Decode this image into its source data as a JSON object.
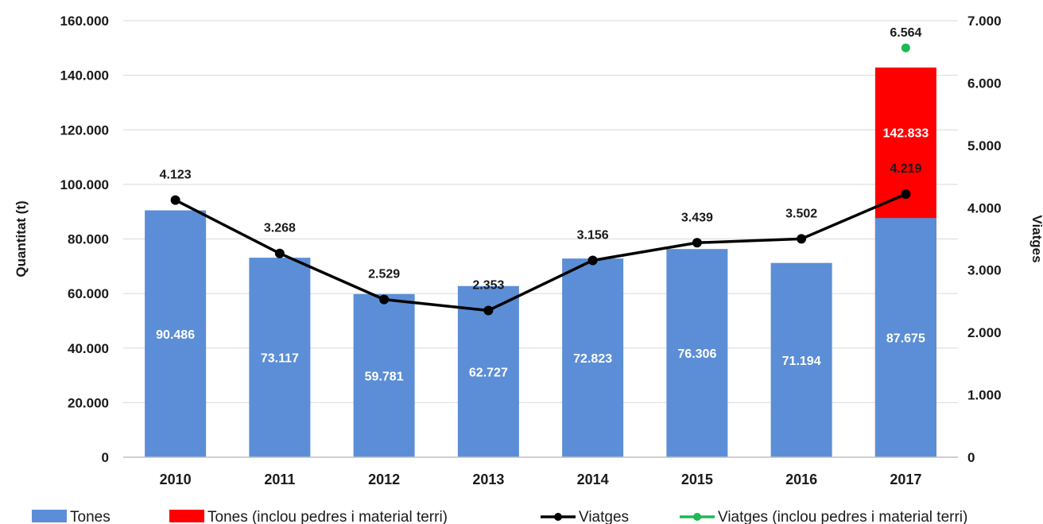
{
  "chart_data": {
    "type": "bar",
    "categories": [
      "2010",
      "2011",
      "2012",
      "2013",
      "2014",
      "2015",
      "2016",
      "2017"
    ],
    "series": [
      {
        "name": "Tones",
        "type": "bar",
        "axis": "left",
        "color": "#5B8ED6",
        "values": [
          90486,
          73117,
          59781,
          62727,
          72823,
          76306,
          71194,
          87675
        ],
        "labels": [
          "90.486",
          "73.117",
          "59.781",
          "62.727",
          "72.823",
          "76.306",
          "71.194",
          "87.675"
        ]
      },
      {
        "name": "Tones (inclou pedres i material terri)",
        "type": "bar",
        "axis": "left",
        "color": "#FF0000",
        "values": [
          null,
          null,
          null,
          null,
          null,
          null,
          null,
          142833
        ],
        "labels": [
          "",
          "",
          "",
          "",
          "",
          "",
          "",
          "142.833"
        ]
      },
      {
        "name": "Viatges",
        "type": "line",
        "axis": "right",
        "color": "#000000",
        "values": [
          4123,
          3268,
          2529,
          2353,
          3156,
          3439,
          3502,
          4219
        ],
        "labels": [
          "4.123",
          "3.268",
          "2.529",
          "2.353",
          "3.156",
          "3.439",
          "3.502",
          "4.219"
        ]
      },
      {
        "name": "Viatges (inclou pedres i material terri)",
        "type": "scatter",
        "axis": "right",
        "color": "#1DB954",
        "values": [
          null,
          null,
          null,
          null,
          null,
          null,
          null,
          6564
        ],
        "labels": [
          "",
          "",
          "",
          "",
          "",
          "",
          "",
          "6.564"
        ]
      }
    ],
    "y_left": {
      "label": "Quantitat (t)",
      "range": [
        0,
        160000
      ],
      "ticks": [
        0,
        20000,
        40000,
        60000,
        80000,
        100000,
        120000,
        140000,
        160000
      ],
      "tick_labels": [
        "0",
        "20.000",
        "40.000",
        "60.000",
        "80.000",
        "100.000",
        "120.000",
        "140.000",
        "160.000"
      ]
    },
    "y_right": {
      "label": "Viatges",
      "range": [
        0,
        7000
      ],
      "ticks": [
        0,
        1000,
        2000,
        3000,
        4000,
        5000,
        6000,
        7000
      ],
      "tick_labels": [
        "0",
        "1.000",
        "2.000",
        "3.000",
        "4.000",
        "5.000",
        "6.000",
        "7.000"
      ]
    },
    "grid": true,
    "legend": "bottom"
  }
}
